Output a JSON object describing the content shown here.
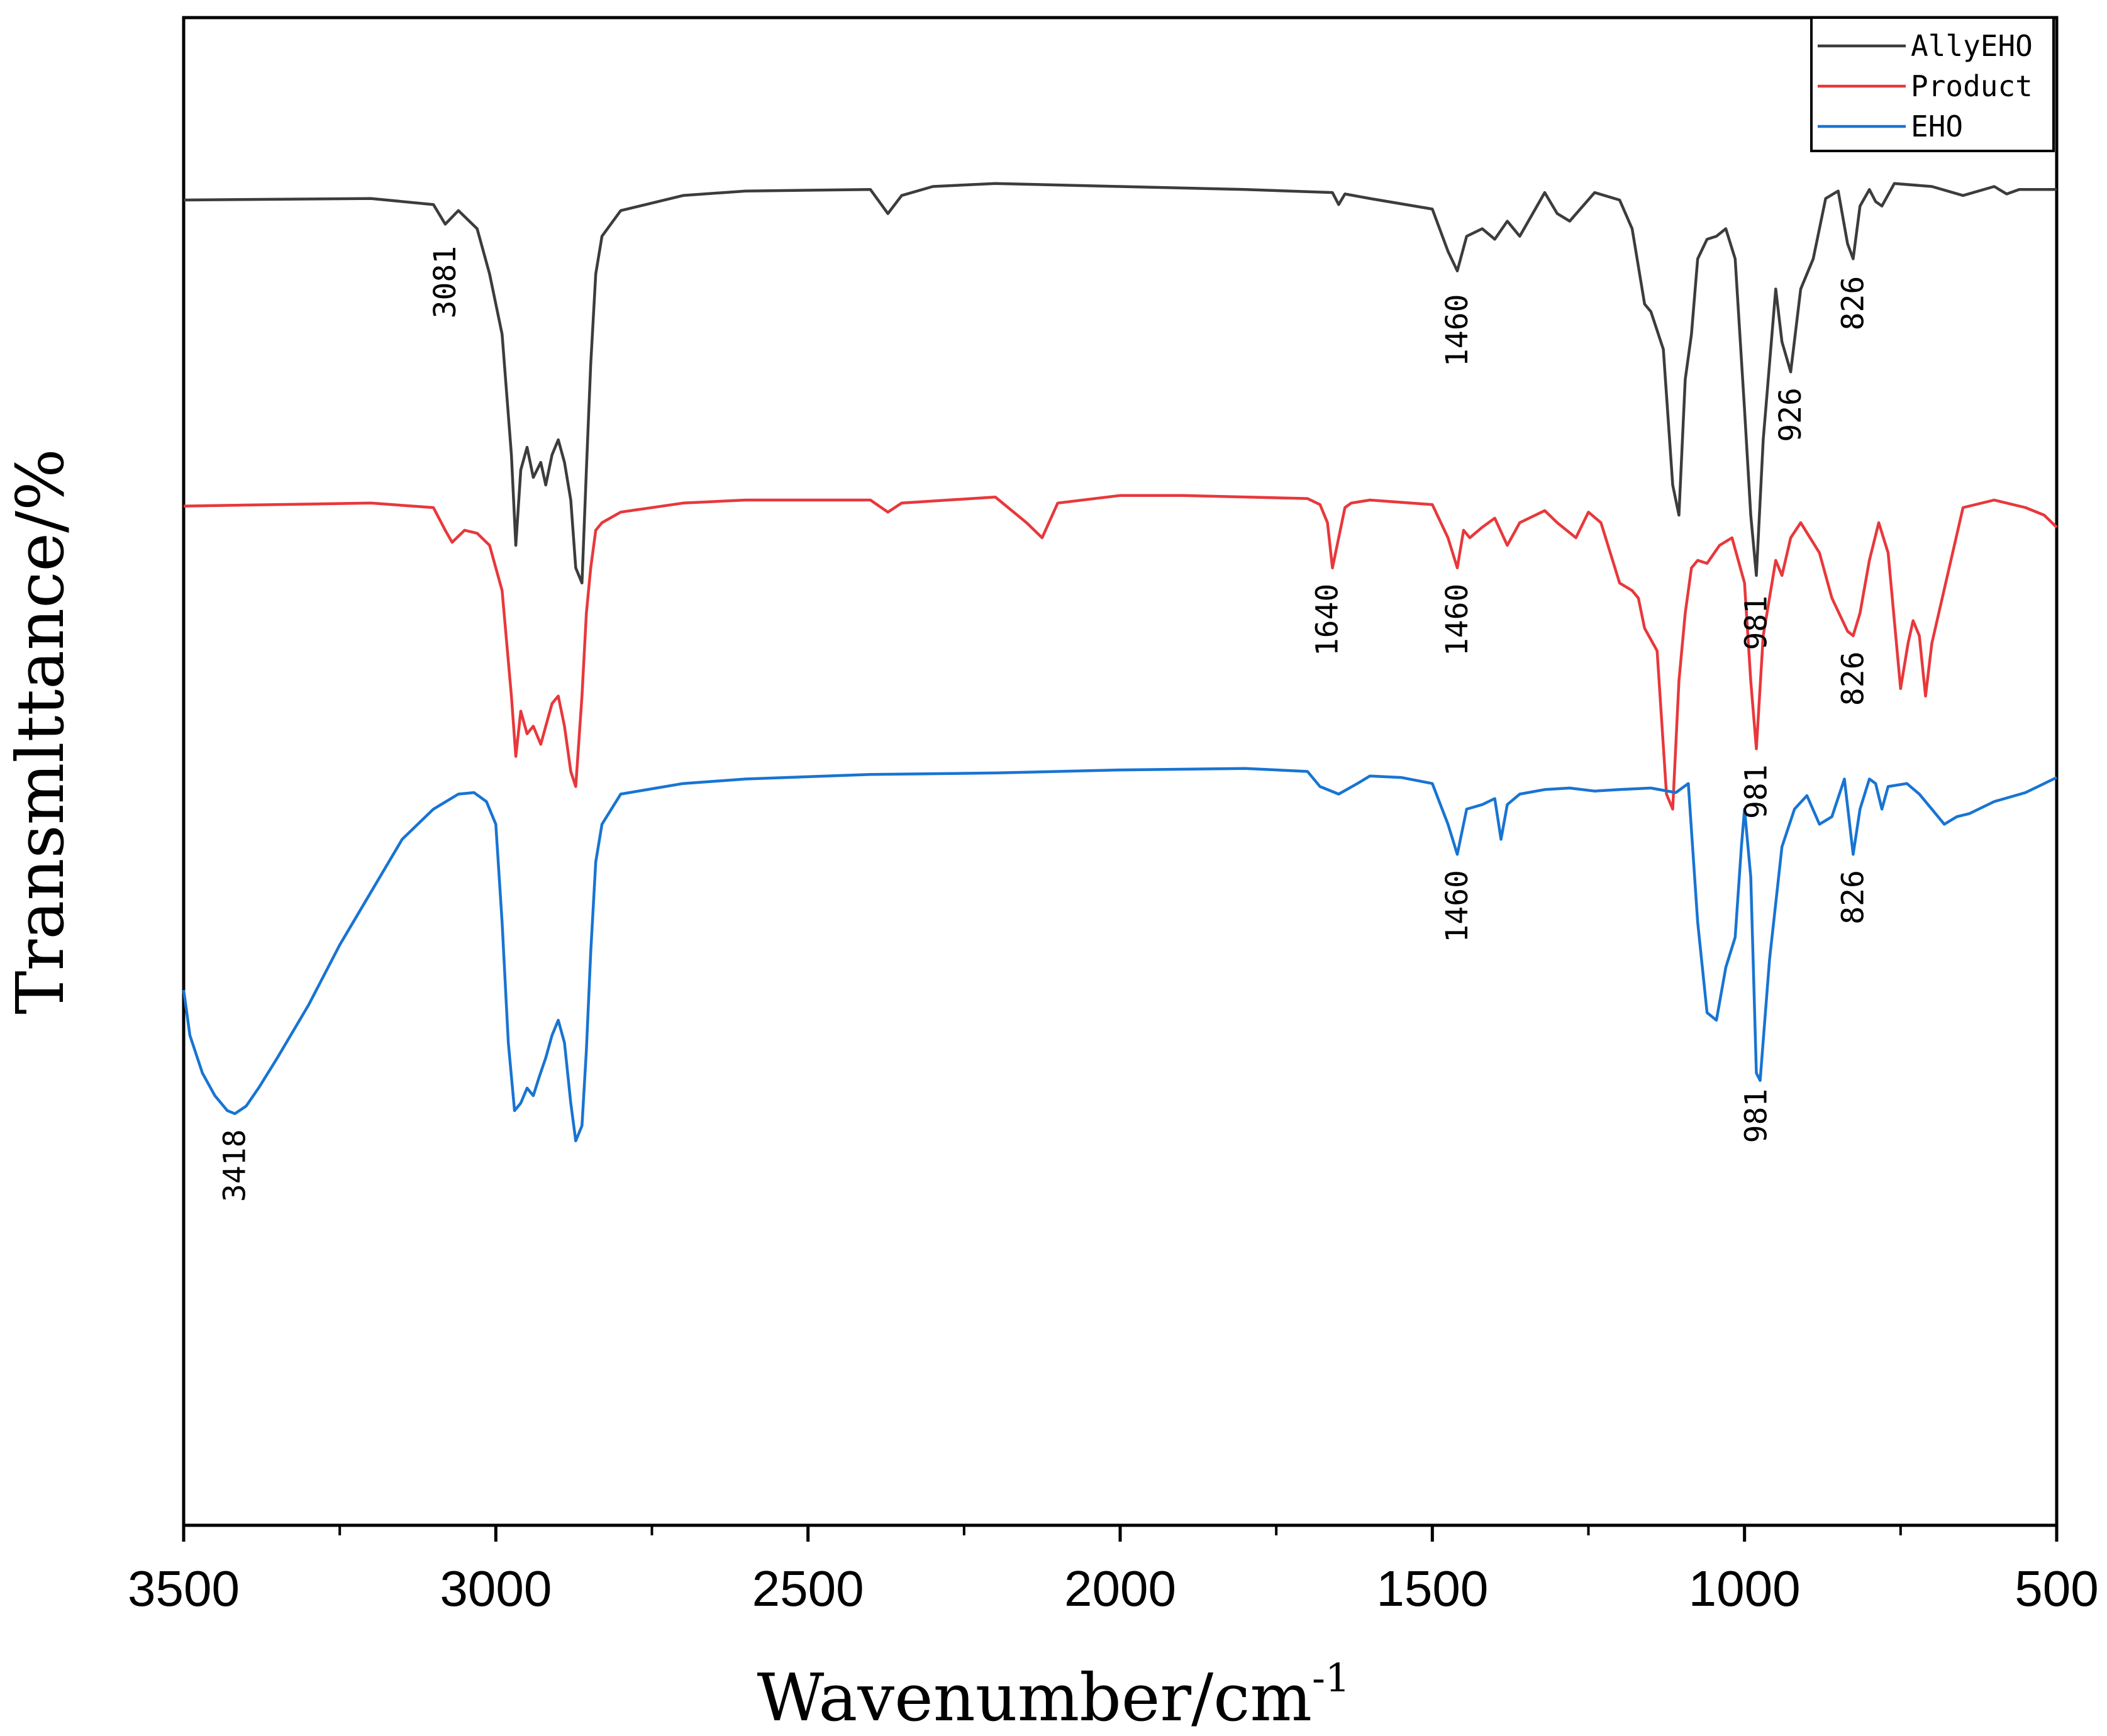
{
  "chart_data": {
    "type": "line",
    "title": "",
    "xlabel": "Wavenumber/cm",
    "xlabel_superscript": "-1",
    "ylabel": "Transmlttance/%",
    "xlim": [
      3500,
      500
    ],
    "x_reversed": true,
    "ylim": [
      0,
      100
    ],
    "grid": false,
    "legend_position": "top-right",
    "x_ticks": [
      3500,
      3000,
      2500,
      2000,
      1500,
      1000,
      500
    ],
    "x_minor_ticks": [
      3250,
      2750,
      2250,
      1750,
      1250,
      750
    ],
    "series": [
      {
        "name": "AllyEHO",
        "color": "#3c3c3c",
        "x": [
          3500,
          3200,
          3100,
          3081,
          3060,
          3030,
          3010,
          2990,
          2975,
          2968,
          2960,
          2950,
          2940,
          2928,
          2920,
          2910,
          2900,
          2890,
          2880,
          2872,
          2862,
          2855,
          2848,
          2840,
          2830,
          2800,
          2700,
          2600,
          2400,
          2372,
          2350,
          2300,
          2200,
          2100,
          2000,
          1800,
          1660,
          1650,
          1640,
          1600,
          1500,
          1475,
          1460,
          1445,
          1420,
          1400,
          1380,
          1360,
          1320,
          1300,
          1280,
          1240,
          1200,
          1180,
          1160,
          1150,
          1130,
          1115,
          1105,
          1095,
          1085,
          1075,
          1060,
          1045,
          1030,
          1015,
          1000,
          990,
          981,
          970,
          950,
          940,
          926,
          910,
          890,
          870,
          850,
          835,
          826,
          815,
          800,
          790,
          780,
          760,
          700,
          650,
          600,
          580,
          560,
          500
        ],
        "values": [
          87.9,
          88.0,
          87.6,
          86.3,
          87.2,
          86.0,
          83.0,
          79.0,
          71.0,
          65.0,
          70.0,
          71.5,
          69.5,
          70.5,
          69.0,
          71.0,
          72.0,
          70.5,
          68.0,
          63.5,
          62.5,
          70.0,
          77.0,
          83.0,
          85.5,
          87.2,
          88.2,
          88.5,
          88.6,
          87.0,
          88.2,
          88.8,
          89.0,
          88.9,
          88.8,
          88.6,
          88.4,
          87.6,
          88.3,
          88.0,
          87.3,
          84.5,
          83.2,
          85.5,
          86.0,
          85.3,
          86.5,
          85.5,
          88.4,
          87.0,
          86.5,
          88.4,
          87.9,
          86.0,
          81.0,
          80.5,
          78.0,
          69.0,
          67.0,
          76.0,
          79.0,
          84.0,
          85.3,
          85.5,
          86.0,
          84.0,
          74.0,
          67.0,
          63.0,
          72.0,
          82.0,
          78.5,
          76.5,
          82.0,
          84.0,
          88.0,
          88.5,
          85.0,
          84.0,
          87.5,
          88.6,
          87.8,
          87.5,
          89.0,
          88.8,
          88.2,
          88.8,
          88.3,
          88.6,
          88.6
        ]
      },
      {
        "name": "Product",
        "color": "#e8383b",
        "x": [
          3500,
          3200,
          3100,
          3081,
          3070,
          3050,
          3030,
          3010,
          2990,
          2975,
          2968,
          2960,
          2950,
          2940,
          2928,
          2920,
          2910,
          2900,
          2890,
          2880,
          2872,
          2862,
          2855,
          2848,
          2840,
          2830,
          2800,
          2700,
          2600,
          2400,
          2372,
          2350,
          2200,
          2150,
          2125,
          2100,
          2000,
          1900,
          1700,
          1680,
          1668,
          1660,
          1645,
          1640,
          1630,
          1600,
          1500,
          1475,
          1460,
          1450,
          1440,
          1420,
          1400,
          1380,
          1360,
          1320,
          1300,
          1270,
          1250,
          1230,
          1200,
          1180,
          1170,
          1160,
          1140,
          1125,
          1115,
          1105,
          1095,
          1085,
          1075,
          1060,
          1040,
          1020,
          1000,
          990,
          981,
          970,
          950,
          940,
          926,
          910,
          880,
          860,
          835,
          826,
          815,
          800,
          785,
          770,
          750,
          738,
          730,
          720,
          710,
          700,
          650,
          600,
          550,
          520,
          500
        ],
        "values": [
          67.6,
          67.8,
          67.5,
          66.0,
          65.2,
          66.0,
          65.8,
          65.0,
          62.0,
          55.0,
          51.0,
          54.0,
          52.5,
          53.0,
          51.8,
          53.0,
          54.5,
          55.0,
          53.0,
          50.0,
          49.0,
          55.0,
          60.5,
          63.5,
          66.0,
          66.5,
          67.2,
          67.8,
          68.0,
          68.0,
          67.2,
          67.8,
          68.2,
          66.5,
          65.5,
          67.8,
          68.3,
          68.3,
          68.1,
          67.7,
          66.5,
          63.5,
          66.5,
          67.5,
          67.8,
          68.0,
          67.7,
          65.5,
          63.5,
          66.0,
          65.5,
          66.2,
          66.8,
          65.0,
          66.5,
          67.3,
          66.5,
          65.5,
          67.2,
          66.5,
          62.5,
          62.0,
          61.5,
          59.5,
          58.0,
          48.5,
          47.5,
          56.0,
          60.5,
          63.5,
          64.0,
          63.8,
          65.0,
          65.5,
          62.5,
          56.0,
          51.5,
          59.0,
          64.0,
          63.0,
          65.5,
          66.5,
          64.5,
          61.5,
          59.3,
          59.0,
          60.5,
          64.0,
          66.5,
          64.5,
          55.5,
          58.5,
          60.0,
          59.0,
          55.0,
          58.5,
          67.5,
          68.0,
          67.5,
          67.0,
          66.2
        ]
      },
      {
        "name": "EHO",
        "color": "#1874d2",
        "x": [
          3500,
          3490,
          3470,
          3450,
          3430,
          3418,
          3400,
          3380,
          3350,
          3300,
          3250,
          3200,
          3150,
          3100,
          3060,
          3035,
          3015,
          3000,
          2990,
          2980,
          2970,
          2960,
          2950,
          2940,
          2930,
          2920,
          2910,
          2900,
          2890,
          2880,
          2872,
          2862,
          2855,
          2848,
          2840,
          2830,
          2800,
          2700,
          2600,
          2400,
          2200,
          2000,
          1800,
          1700,
          1680,
          1650,
          1620,
          1600,
          1550,
          1500,
          1475,
          1460,
          1445,
          1420,
          1400,
          1390,
          1380,
          1360,
          1320,
          1280,
          1240,
          1200,
          1150,
          1110,
          1090,
          1075,
          1060,
          1045,
          1030,
          1015,
          1005,
          1000,
          990,
          981,
          975,
          960,
          940,
          920,
          900,
          880,
          860,
          840,
          826,
          815,
          800,
          790,
          780,
          770,
          740,
          720,
          700,
          680,
          660,
          640,
          600,
          550,
          500
        ],
        "values": [
          35.5,
          32.5,
          30.0,
          28.5,
          27.5,
          27.3,
          27.8,
          29.0,
          31.0,
          34.5,
          38.5,
          42.0,
          45.5,
          47.5,
          48.5,
          48.6,
          48.0,
          46.5,
          40.0,
          32.0,
          27.5,
          28.0,
          29.0,
          28.5,
          29.8,
          31.0,
          32.5,
          33.5,
          32.0,
          28.0,
          25.5,
          26.5,
          31.5,
          38.0,
          44.0,
          46.5,
          48.5,
          49.2,
          49.5,
          49.8,
          49.9,
          50.1,
          50.2,
          50.0,
          49.0,
          48.5,
          49.2,
          49.7,
          49.6,
          49.2,
          46.5,
          44.5,
          47.5,
          47.8,
          48.2,
          45.5,
          47.8,
          48.5,
          48.8,
          48.9,
          48.7,
          48.8,
          48.9,
          48.6,
          49.2,
          40.0,
          34.0,
          33.5,
          37.0,
          39.0,
          45.0,
          47.5,
          43.0,
          30.0,
          29.5,
          37.5,
          45.0,
          47.5,
          48.4,
          46.5,
          47.0,
          49.5,
          44.5,
          47.5,
          49.5,
          49.2,
          47.5,
          49.0,
          49.2,
          48.5,
          47.5,
          46.5,
          47.0,
          47.2,
          48.0,
          48.6,
          49.6
        ]
      }
    ],
    "annotations": [
      {
        "text": "3081",
        "x": 3081,
        "y": 85.2,
        "series": "AllyEHO"
      },
      {
        "text": "1460",
        "x": 1460,
        "y": 82.0,
        "series": "AllyEHO"
      },
      {
        "text": "981",
        "x": 981,
        "y": 62.0,
        "series": "AllyEHO"
      },
      {
        "text": "926",
        "x": 926,
        "y": 75.8,
        "series": "AllyEHO"
      },
      {
        "text": "826",
        "x": 826,
        "y": 83.2,
        "series": "AllyEHO"
      },
      {
        "text": "1640",
        "x": 1668,
        "y": 62.8,
        "series": "Product"
      },
      {
        "text": "1460",
        "x": 1460,
        "y": 62.8,
        "series": "Product"
      },
      {
        "text": "981",
        "x": 981,
        "y": 50.8,
        "series": "Product"
      },
      {
        "text": "826",
        "x": 826,
        "y": 58.3,
        "series": "Product"
      },
      {
        "text": "3418",
        "x": 3418,
        "y": 26.6,
        "series": "EHO"
      },
      {
        "text": "1460",
        "x": 1460,
        "y": 43.8,
        "series": "EHO"
      },
      {
        "text": "981",
        "x": 981,
        "y": 29.3,
        "series": "EHO"
      },
      {
        "text": "826",
        "x": 826,
        "y": 43.8,
        "series": "EHO"
      }
    ]
  }
}
